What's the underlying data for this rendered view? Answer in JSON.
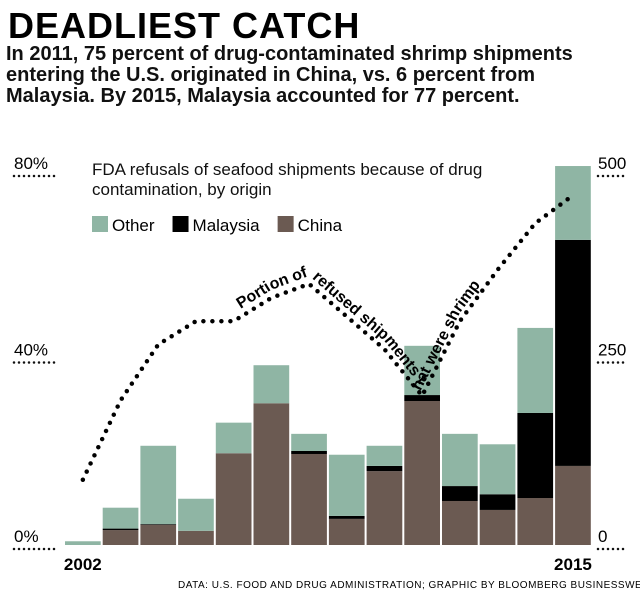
{
  "chart_data": {
    "type": "bar",
    "stacked": true,
    "title": "DEADLIEST CATCH",
    "subtitle": "In 2011, 75 percent of drug-contaminated shrimp shipments entering the U.S. originated in China, vs. 6 percent from Malaysia. By 2015, Malaysia accounted for 77 percent.",
    "chart_title": "FDA refusals of seafood shipments because of drug contamination, by origin",
    "source": "DATA: U.S. FOOD AND DRUG ADMINISTRATION; GRAPHIC BY BLOOMBERG BUSINESSWEEK",
    "categories": [
      "2002",
      null,
      null,
      null,
      null,
      null,
      null,
      null,
      null,
      null,
      null,
      null,
      null,
      "2015"
    ],
    "series": [
      {
        "name": "China",
        "color": "#6b5a52",
        "axis": "y2",
        "values": [
          0,
          20,
          27,
          19,
          123,
          190,
          122,
          35,
          99,
          193,
          59,
          47,
          63,
          106
        ]
      },
      {
        "name": "Malaysia",
        "color": "#000000",
        "axis": "y2",
        "values": [
          0,
          2,
          1,
          0,
          0,
          0,
          4,
          4,
          7,
          8,
          20,
          21,
          114,
          303
        ]
      },
      {
        "name": "Other",
        "color": "#8fb5a4",
        "axis": "y2",
        "values": [
          5,
          28,
          105,
          43,
          41,
          51,
          23,
          82,
          27,
          66,
          70,
          67,
          114,
          99
        ]
      },
      {
        "name": "Portion of refused shipments that were shrimp",
        "type": "line",
        "color": "#000000",
        "values": [
          14,
          31,
          43,
          48,
          48,
          53,
          56,
          49,
          42,
          32,
          48,
          59,
          69,
          75
        ]
      }
    ],
    "ylim": [
      0,
      80
    ],
    "yticks": [
      {
        "value": 0,
        "label": "0%"
      },
      {
        "value": 40,
        "label": "40%"
      },
      {
        "value": 80,
        "label": "80%"
      }
    ],
    "y2lim": [
      0,
      500
    ],
    "y2ticks": [
      0,
      250,
      500
    ]
  }
}
